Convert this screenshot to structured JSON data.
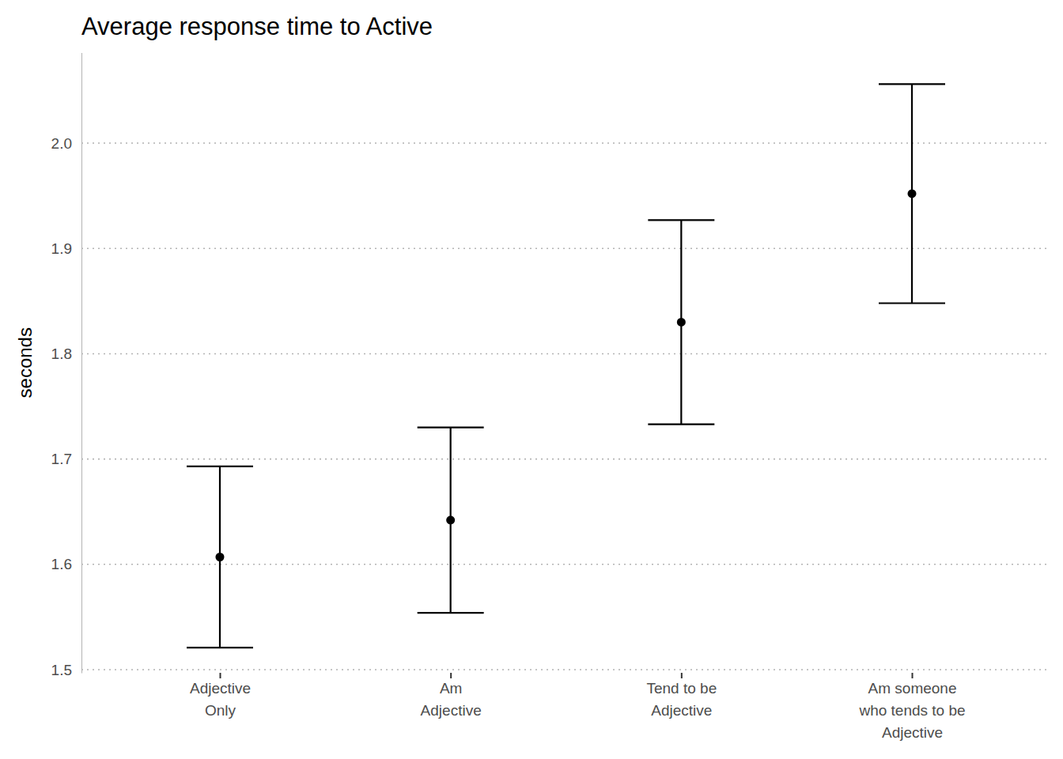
{
  "chart_data": {
    "type": "errorbar",
    "title": "Average response time to Active",
    "y_label": "seconds",
    "categories": [
      "Adjective\nOnly",
      "Am\nAdjective",
      "Tend to be\nAdjective",
      "Am someone\nwho tends to be\nAdjective"
    ],
    "values": [
      1.607,
      1.642,
      1.83,
      1.952
    ],
    "errors": [
      0.086,
      0.088,
      0.097,
      0.104
    ],
    "color": "#000000",
    "ylim": [
      1.497,
      2.086
    ],
    "yticks": [
      {
        "value": 1.5,
        "label": "1.5"
      },
      {
        "value": 1.6,
        "label": "1.6"
      },
      {
        "value": 1.7,
        "label": "1.7"
      },
      {
        "value": 1.8,
        "label": "1.8"
      },
      {
        "value": 1.9,
        "label": "1.9"
      },
      {
        "value": 2.0,
        "label": "2.0"
      }
    ],
    "grid": true
  }
}
